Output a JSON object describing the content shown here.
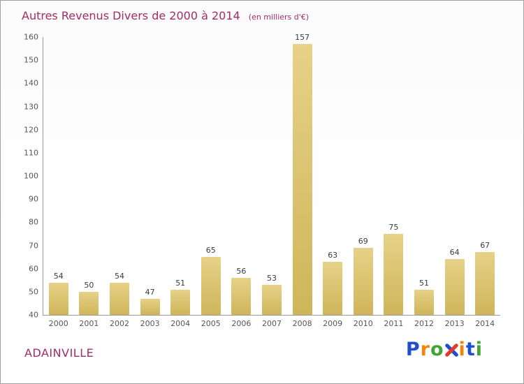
{
  "header": {
    "title": "Autres Revenus Divers de 2000 à 2014",
    "subtitle": "(en milliers d'€)"
  },
  "chart_data": {
    "type": "bar",
    "title": "Autres Revenus Divers de 2000 à 2014",
    "subtitle": "(en milliers d'€)",
    "categories": [
      "2000",
      "2001",
      "2002",
      "2003",
      "2004",
      "2005",
      "2006",
      "2007",
      "2008",
      "2009",
      "2010",
      "2011",
      "2012",
      "2013",
      "2014"
    ],
    "values": [
      54,
      50,
      54,
      47,
      51,
      65,
      56,
      53,
      157,
      63,
      69,
      75,
      51,
      64,
      67
    ],
    "xlabel": "",
    "ylabel": "",
    "ylim": [
      40,
      160
    ],
    "ytick_step": 10,
    "grid": false,
    "legend_position": "none",
    "bar_color_top": "#e6d187",
    "bar_color_bottom": "#cfb55a"
  },
  "footer": {
    "commune": "ADAINVILLE",
    "logo": {
      "name": "Proxiti",
      "letters": [
        {
          "ch": "P",
          "color": "#1e4fd0"
        },
        {
          "ch": "r",
          "color": "#f5820b"
        },
        {
          "ch": "o",
          "color": "#3fa535"
        },
        {
          "ch": "x",
          "color": "multi",
          "icon": "pinwheel-x-icon",
          "color_a": "#1e4fd0",
          "color_b": "#e23b2e"
        },
        {
          "ch": "i",
          "color": "#f5820b"
        },
        {
          "ch": "t",
          "color": "#1e4fd0"
        },
        {
          "ch": "i",
          "color": "#3fa535"
        }
      ]
    }
  },
  "colors": {
    "title_text": "#a22c68",
    "axis_text": "#555555",
    "value_label_text": "#3a3a3a",
    "axis_line": "#999999"
  }
}
